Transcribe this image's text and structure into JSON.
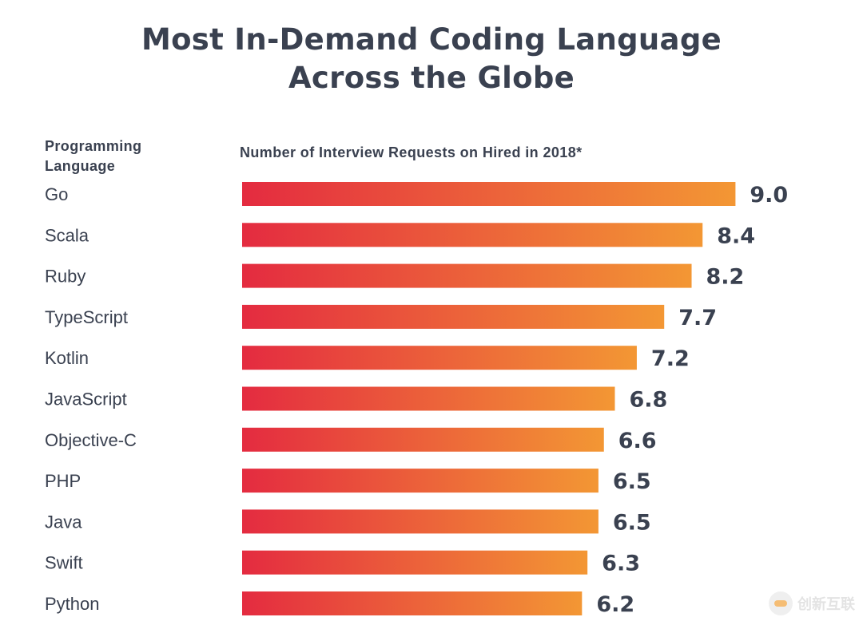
{
  "header": {
    "title_line1": "Most In-Demand Coding Language",
    "title_line2": "Across the Globe"
  },
  "columns": {
    "language_line1": "Programming",
    "language_line2": "Language",
    "metric": "Number of Interview Requests on Hired in 2018*"
  },
  "chart_data": {
    "type": "bar",
    "orientation": "horizontal",
    "title": "Most In-Demand Coding Language Across the Globe",
    "xlabel": "Number of Interview Requests on Hired in 2018*",
    "ylabel": "Programming Language",
    "categories": [
      "Go",
      "Scala",
      "Ruby",
      "TypeScript",
      "Kotlin",
      "JavaScript",
      "Objective-C",
      "PHP",
      "Java",
      "Swift",
      "Python"
    ],
    "values": [
      9.0,
      8.4,
      8.2,
      7.7,
      7.2,
      6.8,
      6.6,
      6.5,
      6.5,
      6.3,
      6.2
    ],
    "value_labels": [
      "9.0",
      "8.4",
      "8.2",
      "7.7",
      "7.2",
      "6.8",
      "6.6",
      "6.5",
      "6.5",
      "6.3",
      "6.2"
    ],
    "colors": {
      "gradient_start": "#e42b40",
      "gradient_end": "#f39734",
      "label": "#3a4150"
    },
    "grid": false,
    "legend": "none"
  },
  "watermark": {
    "text": "创新互联"
  }
}
